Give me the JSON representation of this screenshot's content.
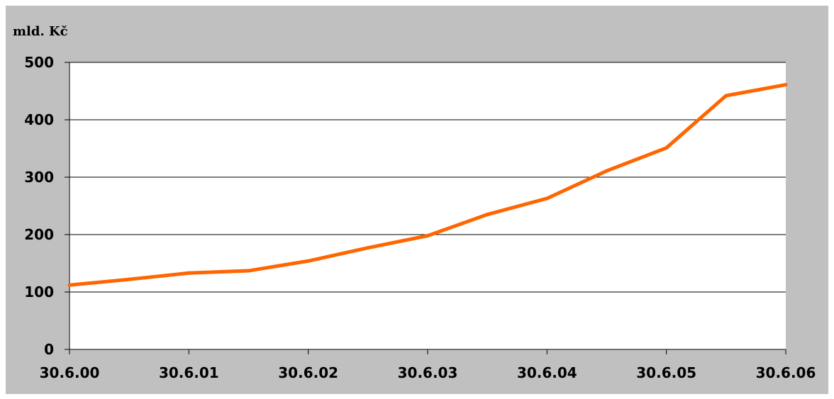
{
  "chart_data": {
    "type": "line",
    "title": "",
    "ylabel": "mld. Kč",
    "xlabel": "",
    "ylim": [
      0,
      500
    ],
    "yticks": [
      0,
      100,
      200,
      300,
      400,
      500
    ],
    "grid": true,
    "legend": false,
    "categories": [
      "30.6.00",
      "30.6.01",
      "30.6.02",
      "30.6.03",
      "30.6.04",
      "30.6.05",
      "30.6.06"
    ],
    "x": [
      "30.6.00",
      "31.12.00",
      "30.6.01",
      "31.12.01",
      "30.6.02",
      "31.12.02",
      "30.6.03",
      "31.12.03",
      "30.6.04",
      "31.12.04",
      "30.6.05",
      "31.12.05",
      "30.6.06"
    ],
    "series": [
      {
        "values": [
          112,
          122,
          133,
          137,
          154,
          177,
          198,
          235,
          263,
          311,
          351,
          442,
          461
        ]
      }
    ],
    "colors": {
      "line": "#ff6600",
      "plot_background": "#ffffff",
      "chart_background": "#c0c0c0",
      "gridline": "#000000"
    }
  }
}
